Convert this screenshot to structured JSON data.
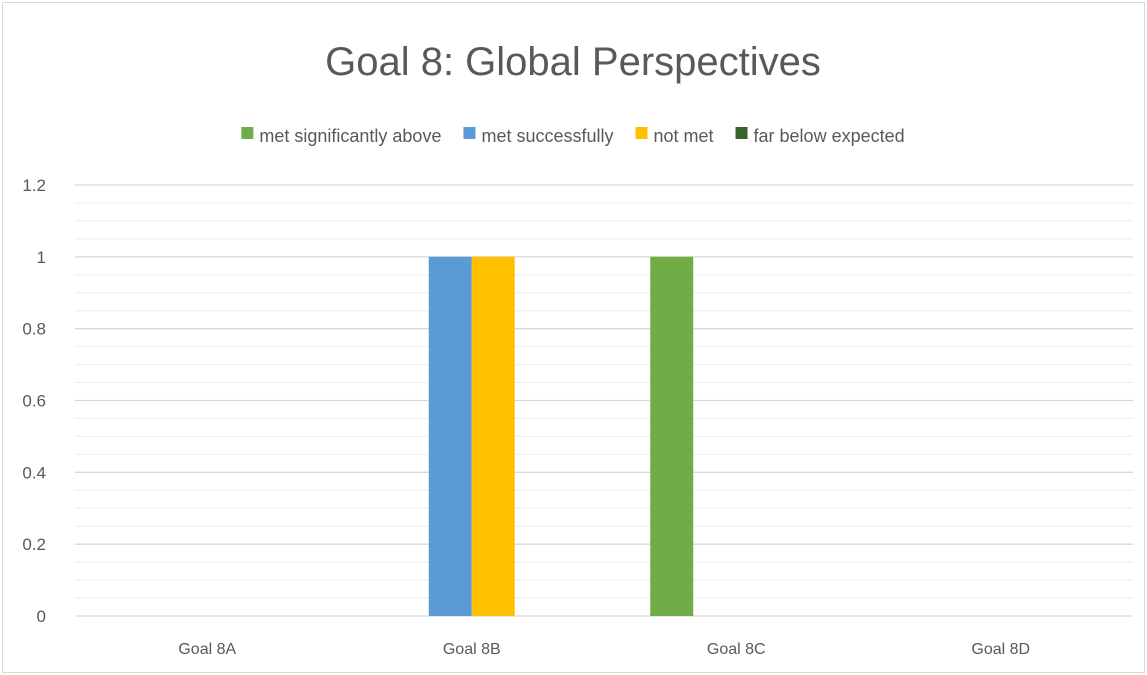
{
  "chart_data": {
    "type": "bar",
    "title": "Goal 8: Global Perspectives",
    "xlabel": "",
    "ylabel": "",
    "categories": [
      "Goal 8A",
      "Goal 8B",
      "Goal 8C",
      "Goal 8D"
    ],
    "series": [
      {
        "name": "met significantly above",
        "color": "#70ad47",
        "values": [
          0,
          0,
          1,
          0
        ]
      },
      {
        "name": "met successfully",
        "color": "#5b9bd5",
        "values": [
          0,
          1,
          0,
          0
        ]
      },
      {
        "name": "not met",
        "color": "#ffc000",
        "values": [
          0,
          1,
          0,
          0
        ]
      },
      {
        "name": "far below expected",
        "color": "#38632b",
        "values": [
          0,
          0,
          0,
          0
        ]
      }
    ],
    "ylim": [
      0,
      1.2
    ],
    "yticks": [
      "0",
      "0.2",
      "0.4",
      "0.6",
      "0.8",
      "1",
      "1.2"
    ],
    "ytick_values": [
      0,
      0.2,
      0.4,
      0.6,
      0.8,
      1,
      1.2
    ],
    "minor_step": 0.05,
    "grid": true,
    "legend_position": "top"
  }
}
